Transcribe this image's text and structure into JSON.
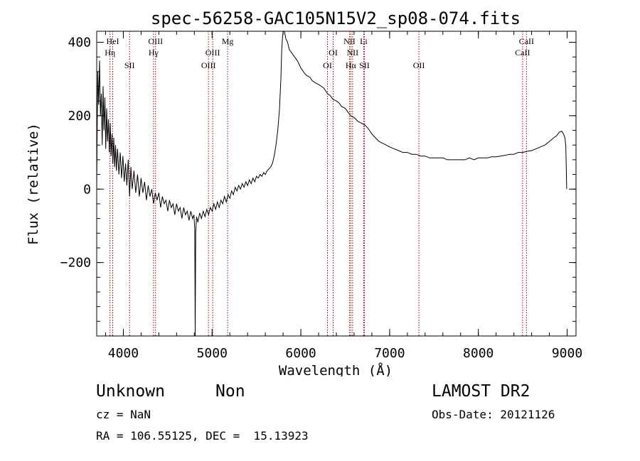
{
  "chart_data": {
    "type": "line",
    "title": "spec-56258-GAC105N15V2_sp08-074.fits",
    "xlabel": "Wavelength (Å)",
    "ylabel": "Flux (relative)",
    "xlim": [
      3700,
      9100
    ],
    "ylim": [
      -400,
      430
    ],
    "xticks": [
      4000,
      5000,
      6000,
      7000,
      8000,
      9000
    ],
    "yticks": [
      -200,
      0,
      200,
      400
    ],
    "x_minor_step": 200,
    "y_minor_step": 40,
    "grid": false,
    "series": [
      {
        "color": "#000000",
        "points": [
          [
            3700,
            0
          ],
          [
            3705,
            150
          ],
          [
            3712,
            320
          ],
          [
            3722,
            230
          ],
          [
            3732,
            350
          ],
          [
            3742,
            200
          ],
          [
            3752,
            260
          ],
          [
            3762,
            120
          ],
          [
            3772,
            280
          ],
          [
            3782,
            160
          ],
          [
            3792,
            250
          ],
          [
            3802,
            110
          ],
          [
            3812,
            220
          ],
          [
            3822,
            130
          ],
          [
            3832,
            190
          ],
          [
            3842,
            100
          ],
          [
            3852,
            180
          ],
          [
            3862,
            90
          ],
          [
            3872,
            150
          ],
          [
            3882,
            70
          ],
          [
            3892,
            140
          ],
          [
            3902,
            60
          ],
          [
            3912,
            120
          ],
          [
            3922,
            50
          ],
          [
            3935,
            110
          ],
          [
            3950,
            40
          ],
          [
            3965,
            100
          ],
          [
            3980,
            30
          ],
          [
            3995,
            90
          ],
          [
            4010,
            20
          ],
          [
            4025,
            70
          ],
          [
            4040,
            10
          ],
          [
            4055,
            80
          ],
          [
            4070,
            -20
          ],
          [
            4085,
            60
          ],
          [
            4100,
            0
          ],
          [
            4120,
            50
          ],
          [
            4140,
            -10
          ],
          [
            4160,
            40
          ],
          [
            4180,
            -20
          ],
          [
            4200,
            30
          ],
          [
            4220,
            -10
          ],
          [
            4240,
            20
          ],
          [
            4260,
            -30
          ],
          [
            4280,
            10
          ],
          [
            4300,
            -20
          ],
          [
            4320,
            0
          ],
          [
            4340,
            -40
          ],
          [
            4360,
            -10
          ],
          [
            4380,
            -30
          ],
          [
            4400,
            -10
          ],
          [
            4420,
            -50
          ],
          [
            4440,
            -20
          ],
          [
            4460,
            -40
          ],
          [
            4480,
            -30
          ],
          [
            4500,
            -60
          ],
          [
            4520,
            -30
          ],
          [
            4540,
            -50
          ],
          [
            4560,
            -40
          ],
          [
            4580,
            -70
          ],
          [
            4600,
            -40
          ],
          [
            4620,
            -60
          ],
          [
            4640,
            -50
          ],
          [
            4660,
            -80
          ],
          [
            4680,
            -50
          ],
          [
            4700,
            -70
          ],
          [
            4720,
            -60
          ],
          [
            4740,
            -85
          ],
          [
            4760,
            -60
          ],
          [
            4780,
            -80
          ],
          [
            4795,
            -70
          ],
          [
            4805,
            -110
          ],
          [
            4810,
            -400
          ],
          [
            4815,
            -120
          ],
          [
            4825,
            -75
          ],
          [
            4840,
            -90
          ],
          [
            4860,
            -65
          ],
          [
            4880,
            -80
          ],
          [
            4900,
            -60
          ],
          [
            4920,
            -75
          ],
          [
            4940,
            -55
          ],
          [
            4960,
            -70
          ],
          [
            4980,
            -50
          ],
          [
            5000,
            -60
          ],
          [
            5020,
            -40
          ],
          [
            5040,
            -55
          ],
          [
            5060,
            -35
          ],
          [
            5080,
            -50
          ],
          [
            5100,
            -30
          ],
          [
            5120,
            -40
          ],
          [
            5140,
            -20
          ],
          [
            5160,
            -35
          ],
          [
            5180,
            -15
          ],
          [
            5200,
            -25
          ],
          [
            5220,
            -5
          ],
          [
            5240,
            -15
          ],
          [
            5260,
            5
          ],
          [
            5280,
            -5
          ],
          [
            5300,
            10
          ],
          [
            5320,
            0
          ],
          [
            5340,
            15
          ],
          [
            5360,
            5
          ],
          [
            5380,
            20
          ],
          [
            5400,
            10
          ],
          [
            5420,
            25
          ],
          [
            5440,
            15
          ],
          [
            5460,
            30
          ],
          [
            5480,
            20
          ],
          [
            5500,
            35
          ],
          [
            5520,
            30
          ],
          [
            5540,
            40
          ],
          [
            5560,
            35
          ],
          [
            5580,
            45
          ],
          [
            5600,
            40
          ],
          [
            5620,
            50
          ],
          [
            5640,
            55
          ],
          [
            5660,
            60
          ],
          [
            5680,
            70
          ],
          [
            5700,
            90
          ],
          [
            5720,
            120
          ],
          [
            5740,
            160
          ],
          [
            5760,
            220
          ],
          [
            5775,
            300
          ],
          [
            5785,
            380
          ],
          [
            5795,
            420
          ],
          [
            5805,
            430
          ],
          [
            5815,
            440
          ],
          [
            5830,
            410
          ],
          [
            5850,
            400
          ],
          [
            5870,
            380
          ],
          [
            5900,
            370
          ],
          [
            5930,
            360
          ],
          [
            5960,
            350
          ],
          [
            6000,
            330
          ],
          [
            6030,
            320
          ],
          [
            6060,
            310
          ],
          [
            6100,
            305
          ],
          [
            6130,
            295
          ],
          [
            6160,
            290
          ],
          [
            6200,
            285
          ],
          [
            6230,
            280
          ],
          [
            6260,
            275
          ],
          [
            6300,
            260
          ],
          [
            6330,
            255
          ],
          [
            6360,
            245
          ],
          [
            6400,
            240
          ],
          [
            6430,
            235
          ],
          [
            6460,
            225
          ],
          [
            6500,
            220
          ],
          [
            6530,
            210
          ],
          [
            6560,
            200
          ],
          [
            6600,
            195
          ],
          [
            6640,
            185
          ],
          [
            6680,
            180
          ],
          [
            6720,
            175
          ],
          [
            6760,
            165
          ],
          [
            6800,
            150
          ],
          [
            6840,
            140
          ],
          [
            6880,
            130
          ],
          [
            6920,
            125
          ],
          [
            6960,
            120
          ],
          [
            7000,
            115
          ],
          [
            7050,
            110
          ],
          [
            7100,
            105
          ],
          [
            7150,
            100
          ],
          [
            7200,
            100
          ],
          [
            7250,
            95
          ],
          [
            7300,
            95
          ],
          [
            7350,
            90
          ],
          [
            7400,
            90
          ],
          [
            7450,
            85
          ],
          [
            7500,
            85
          ],
          [
            7550,
            85
          ],
          [
            7600,
            85
          ],
          [
            7650,
            80
          ],
          [
            7700,
            80
          ],
          [
            7750,
            80
          ],
          [
            7800,
            80
          ],
          [
            7850,
            80
          ],
          [
            7900,
            85
          ],
          [
            7950,
            80
          ],
          [
            8000,
            85
          ],
          [
            8050,
            85
          ],
          [
            8100,
            85
          ],
          [
            8150,
            88
          ],
          [
            8200,
            88
          ],
          [
            8250,
            90
          ],
          [
            8300,
            92
          ],
          [
            8350,
            95
          ],
          [
            8400,
            95
          ],
          [
            8450,
            100
          ],
          [
            8500,
            100
          ],
          [
            8550,
            103
          ],
          [
            8600,
            105
          ],
          [
            8650,
            110
          ],
          [
            8700,
            115
          ],
          [
            8750,
            120
          ],
          [
            8800,
            130
          ],
          [
            8850,
            140
          ],
          [
            8880,
            145
          ],
          [
            8910,
            155
          ],
          [
            8940,
            158
          ],
          [
            8960,
            150
          ],
          [
            8975,
            140
          ],
          [
            8985,
            120
          ],
          [
            8990,
            60
          ],
          [
            8995,
            0
          ]
        ]
      }
    ],
    "line_markers": [
      {
        "x": 3880,
        "label": "HeI",
        "row": 0
      },
      {
        "x": 3850,
        "label": "Hη",
        "row": 1
      },
      {
        "x": 4070,
        "label": "SII",
        "row": 2
      },
      {
        "x": 4363,
        "label": "OIII",
        "row": 0
      },
      {
        "x": 4340,
        "label": "Hγ",
        "row": 1
      },
      {
        "x": 5007,
        "label": "OIII",
        "row": 1
      },
      {
        "x": 4959,
        "label": "OIII",
        "row": 2
      },
      {
        "x": 5175,
        "label": "Mg",
        "row": 0
      },
      {
        "x": 6364,
        "label": "OI",
        "row": 1
      },
      {
        "x": 6300,
        "label": "OI",
        "row": 2
      },
      {
        "x": 6548,
        "label": "NII",
        "row": 0
      },
      {
        "x": 6583,
        "label": "NII",
        "row": 1
      },
      {
        "x": 6563,
        "label": "Hα",
        "row": 2
      },
      {
        "x": 6708,
        "label": "Li",
        "row": 0
      },
      {
        "x": 6716,
        "label": "SII",
        "row": 2
      },
      {
        "x": 7330,
        "label": "OII",
        "row": 2
      },
      {
        "x": 8542,
        "label": "CaII",
        "row": 0
      },
      {
        "x": 8498,
        "label": "CaII",
        "row": 1
      }
    ],
    "marker_color": "#8b0000"
  },
  "info": {
    "class": "Unknown",
    "subclass": "Non",
    "cz": "cz = NaN",
    "coords": "RA = 106.55125, DEC =  15.13923",
    "survey": "LAMOST DR2",
    "obs_date": "Obs-Date: 20121126"
  }
}
